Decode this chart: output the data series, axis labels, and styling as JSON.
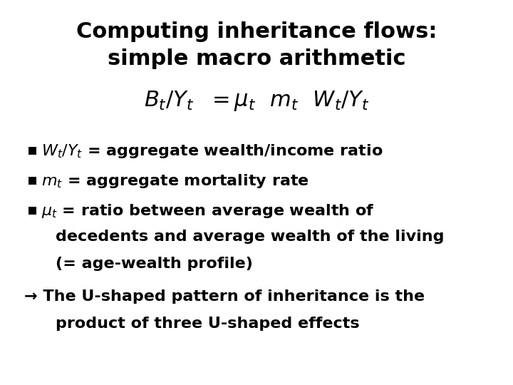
{
  "title_line1": "Computing inheritance flows:",
  "title_line2": "simple macro arithmetic",
  "formula": "$B_t/Y_t$  $= \\mu_t$  $m_t$  $W_t/Y_t$",
  "bullet1_bullet": "▪",
  "bullet1_text": "$W_t/Y_t$ = aggregate wealth/income ratio",
  "bullet2_bullet": "▪",
  "bullet2_text": "$m_t$ = aggregate mortality rate",
  "bullet3_bullet": "▪",
  "bullet3_text": "$\\mu_t$ = ratio between average wealth of",
  "bullet3_cont1": "decedents and average wealth of the living",
  "bullet3_cont2": "(= age-wealth profile)",
  "arrow_line1": "→ The U-shaped pattern of inheritance is the",
  "arrow_line2": "product of three U-shaped effects",
  "bg_color": "#ffffff",
  "text_color": "#000000",
  "title_fontsize": 22,
  "formula_fontsize": 22,
  "body_fontsize": 16
}
